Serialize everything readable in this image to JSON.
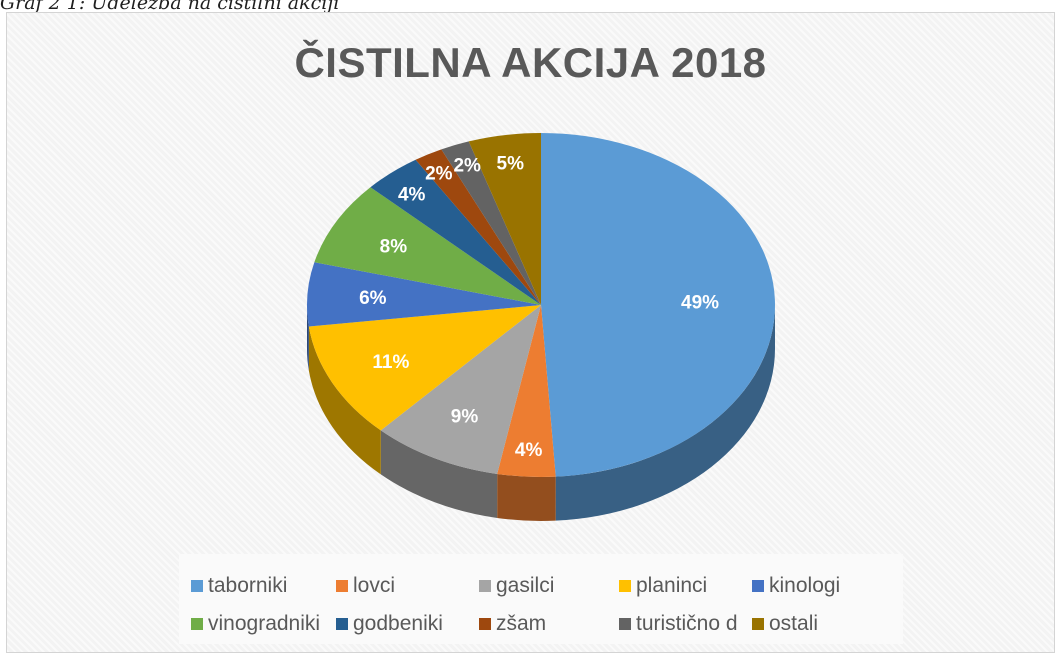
{
  "caption": "Graf 2 1: Udeležba na čistilni akciji",
  "chart_data": {
    "type": "pie",
    "title": "ČISTILNA AKCIJA 2018",
    "legend_position": "bottom",
    "categories": [
      "taborniki",
      "lovci",
      "gasilci",
      "planinci",
      "kinologi",
      "vinogradniki",
      "godbeniki",
      "zšam",
      "turistično d",
      "ostali"
    ],
    "values": [
      49,
      4,
      9,
      11,
      6,
      8,
      4,
      2,
      2,
      5
    ],
    "labels": [
      "49%",
      "4%",
      "9%",
      "11%",
      "6%",
      "8%",
      "4%",
      "2%",
      "2%",
      "5%"
    ],
    "colors": [
      "#5b9bd5",
      "#ed7d31",
      "#a5a5a5",
      "#ffc000",
      "#4472c4",
      "#70ad47",
      "#255e91",
      "#9e480e",
      "#636363",
      "#997300"
    ]
  }
}
